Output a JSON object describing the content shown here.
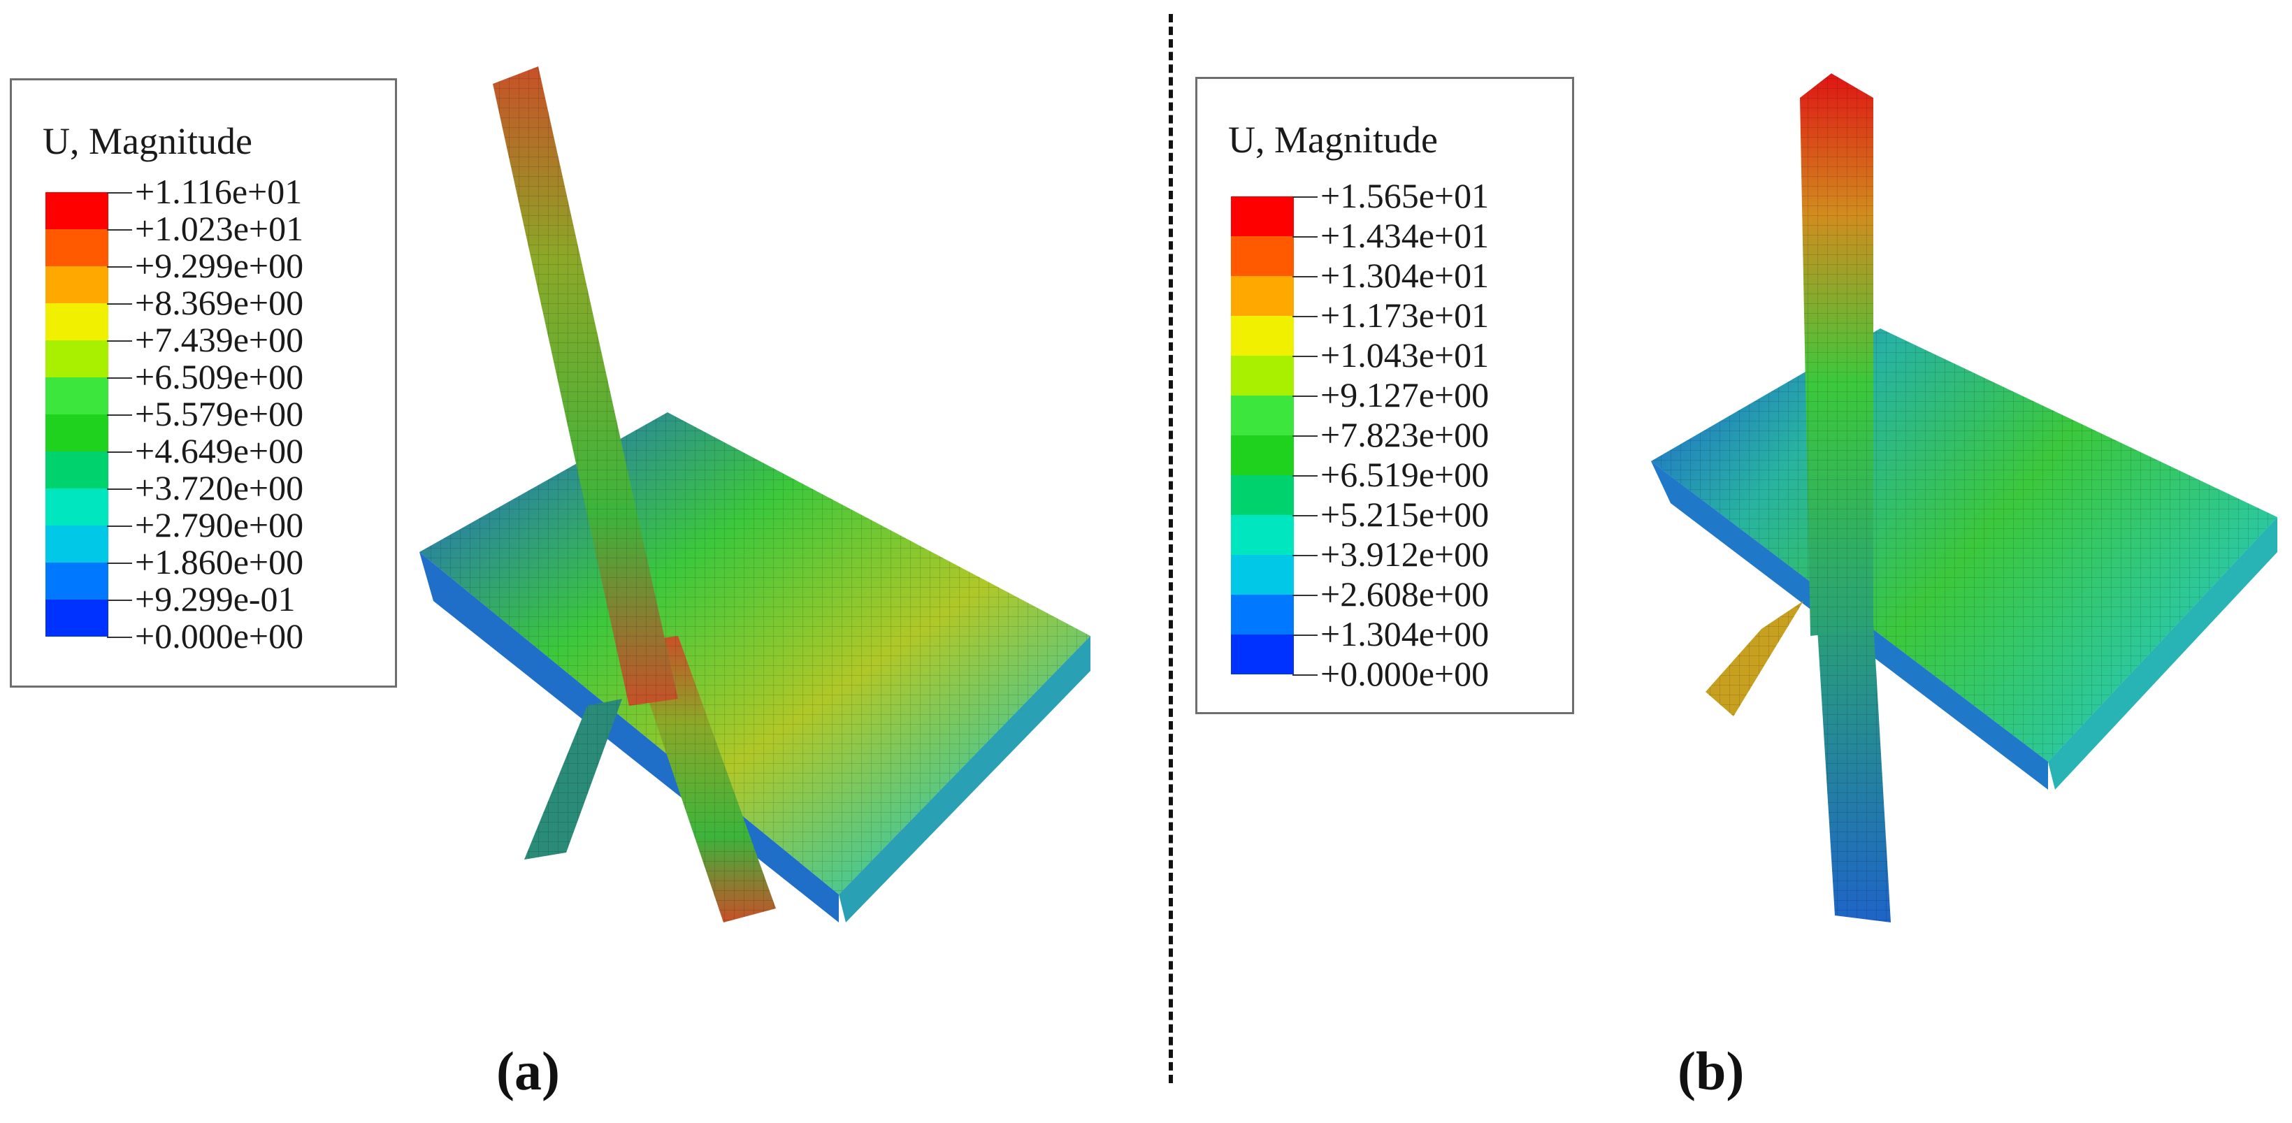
{
  "panels": [
    {
      "id": "a",
      "caption": "(a)",
      "legend": {
        "title": "U, Magnitude",
        "values": [
          "+1.116e+01",
          "+1.023e+01",
          "+9.299e+00",
          "+8.369e+00",
          "+7.439e+00",
          "+6.509e+00",
          "+5.579e+00",
          "+4.649e+00",
          "+3.720e+00",
          "+2.790e+00",
          "+1.860e+00",
          "+9.299e-01",
          "+0.000e+00"
        ]
      }
    },
    {
      "id": "b",
      "caption": "(b)",
      "legend": {
        "title": "U, Magnitude",
        "values": [
          "+1.565e+01",
          "+1.434e+01",
          "+1.304e+01",
          "+1.173e+01",
          "+1.043e+01",
          "+9.127e+00",
          "+7.823e+00",
          "+6.519e+00",
          "+5.215e+00",
          "+3.912e+00",
          "+2.608e+00",
          "+1.304e+00",
          "+0.000e+00"
        ]
      }
    }
  ],
  "colormap": [
    "#ff0000",
    "#ff5a00",
    "#ffa800",
    "#f0f000",
    "#a8f000",
    "#3ce63c",
    "#1ed21e",
    "#00d26e",
    "#00e6be",
    "#00c8e6",
    "#0078ff",
    "#0032ff",
    "#0000e6"
  ]
}
